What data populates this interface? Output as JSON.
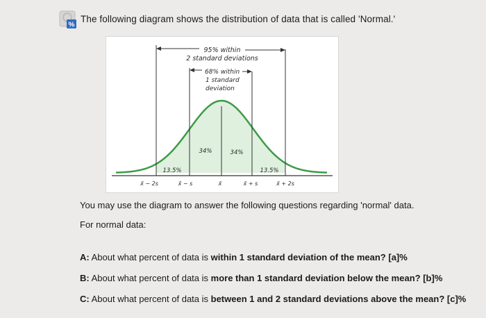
{
  "intro": {
    "text": "The following diagram shows the distribution of data that is called 'Normal.'"
  },
  "diagram": {
    "label_95_line1": "95% within",
    "label_95_line2": "2 standard deviations",
    "label_68_line1": "68% within",
    "label_68_line2": "1 standard",
    "label_68_line3": "deviation",
    "pct_left_inner": "34%",
    "pct_right_inner": "34%",
    "pct_left_outer": "13.5%",
    "pct_right_outer": "13.5%",
    "ticks": [
      "x̄ − 2s",
      "x̄ − s",
      "x̄",
      "x̄ + s",
      "x̄ + 2s"
    ],
    "colors": {
      "curve": "#3d9b46",
      "fill": "#dff0df",
      "lines": "#333333"
    }
  },
  "body": {
    "line1": "You may use the diagram to answer the following questions regarding 'normal' data.",
    "line2": "For normal data:"
  },
  "questions": [
    {
      "letter": "A:",
      "pre": "About what percent of data is",
      "bold": "within 1 standard deviation of the mean?",
      "post": "[a]%"
    },
    {
      "letter": "B:",
      "pre": "About what percent of data is",
      "bold": "more than 1 standard deviation below the mean?",
      "post": "[b]%"
    },
    {
      "letter": "C:",
      "pre": "About what percent of data is",
      "bold": "between 1 and 2 standard deviations above the mean?",
      "post": "[c]%"
    }
  ]
}
